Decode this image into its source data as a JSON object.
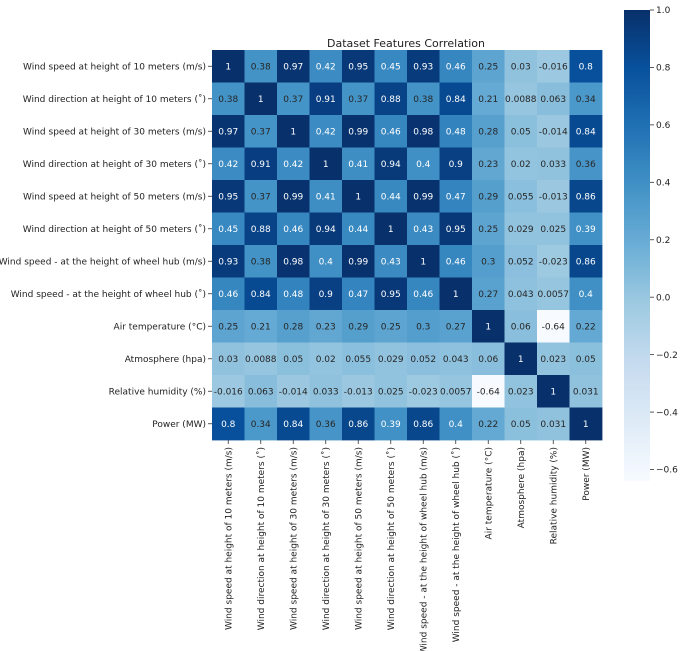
{
  "chart_data": {
    "type": "heatmap",
    "title": "Dataset Features Correlation",
    "colormap": "Blues",
    "labels": [
      "Wind speed at height of 10 meters (m/s)",
      "Wind direction at height of 10 meters (˚)",
      "Wind speed at height of 30 meters (m/s)",
      "Wind direction at height of 30 meters (˚)",
      "Wind speed at height of 50 meters (m/s)",
      "Wind direction at height of 50 meters (˚)",
      "Wind speed - at the height of wheel hub (m/s)",
      "Wind speed - at the height of wheel hub (˚)",
      "Air temperature  (°C)",
      "Atmosphere (hpa)",
      "Relative humidity (%)",
      "Power (MW)"
    ],
    "matrix": [
      [
        1,
        0.38,
        0.97,
        0.42,
        0.95,
        0.45,
        0.93,
        0.46,
        0.25,
        0.03,
        -0.016,
        0.8
      ],
      [
        0.38,
        1,
        0.37,
        0.91,
        0.37,
        0.88,
        0.38,
        0.84,
        0.21,
        0.0088,
        0.063,
        0.34
      ],
      [
        0.97,
        0.37,
        1,
        0.42,
        0.99,
        0.46,
        0.98,
        0.48,
        0.28,
        0.05,
        -0.014,
        0.84
      ],
      [
        0.42,
        0.91,
        0.42,
        1,
        0.41,
        0.94,
        0.4,
        0.9,
        0.23,
        0.02,
        0.033,
        0.36
      ],
      [
        0.95,
        0.37,
        0.99,
        0.41,
        1,
        0.44,
        0.99,
        0.47,
        0.29,
        0.055,
        -0.013,
        0.86
      ],
      [
        0.45,
        0.88,
        0.46,
        0.94,
        0.44,
        1,
        0.43,
        0.95,
        0.25,
        0.029,
        0.025,
        0.39
      ],
      [
        0.93,
        0.38,
        0.98,
        0.4,
        0.99,
        0.43,
        1,
        0.46,
        0.3,
        0.052,
        -0.023,
        0.86
      ],
      [
        0.46,
        0.84,
        0.48,
        0.9,
        0.47,
        0.95,
        0.46,
        1,
        0.27,
        0.043,
        0.0057,
        0.4
      ],
      [
        0.25,
        0.21,
        0.28,
        0.23,
        0.29,
        0.25,
        0.3,
        0.27,
        1,
        0.06,
        -0.64,
        0.22
      ],
      [
        0.03,
        0.0088,
        0.05,
        0.02,
        0.055,
        0.029,
        0.052,
        0.043,
        0.06,
        1,
        0.023,
        0.05
      ],
      [
        -0.016,
        0.063,
        -0.014,
        0.033,
        -0.013,
        0.025,
        -0.023,
        0.0057,
        -0.64,
        0.023,
        1,
        0.031
      ],
      [
        0.8,
        0.34,
        0.84,
        0.36,
        0.86,
        0.39,
        0.86,
        0.4,
        0.22,
        0.05,
        0.031,
        1
      ]
    ],
    "colorbar": {
      "vmin": -0.64,
      "vmax": 1,
      "ticks": [
        -0.6,
        -0.4,
        -0.2,
        0.0,
        0.2,
        0.4,
        0.6,
        0.8,
        1.0
      ],
      "tick_labels": [
        "−0.6",
        "−0.4",
        "−0.2",
        "0.0",
        "0.2",
        "0.4",
        "0.6",
        "0.8",
        "1.0"
      ]
    }
  }
}
